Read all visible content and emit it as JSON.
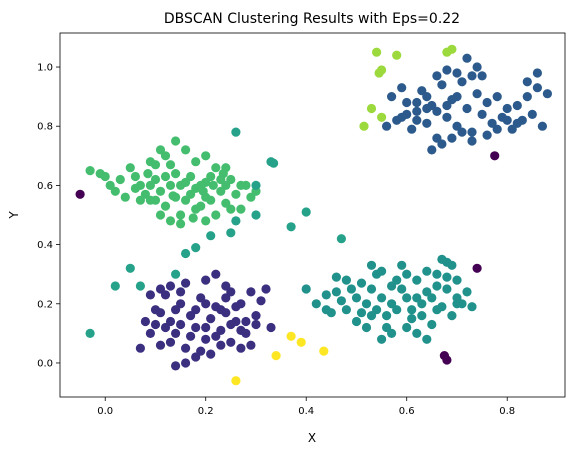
{
  "chart_data": {
    "type": "scatter",
    "title": "DBSCAN Clustering Results with Eps=0.22",
    "xlabel": "X",
    "ylabel": "Y",
    "xlim": [
      -0.09,
      0.915
    ],
    "ylim": [
      -0.115,
      1.115
    ],
    "xticks": [
      "0.0",
      "0.2",
      "0.4",
      "0.6",
      "0.8"
    ],
    "yticks": [
      "0.0",
      "0.2",
      "0.4",
      "0.6",
      "0.8",
      "1.0"
    ],
    "grid": false,
    "colors": {
      "noise": "#440154",
      "cluster_bottom_left": "#3b2f80",
      "cluster_top_right": "#2c5a8c",
      "cluster_bottom_right": "#21918c",
      "sparse_teal": "#27a28a",
      "cluster_top_left": "#44be6e",
      "cluster_lime": "#9bd93c",
      "cluster_yellow": "#fde725"
    },
    "series": [
      {
        "color_key": "noise",
        "points": [
          [
            -0.05,
            0.57
          ],
          [
            0.775,
            0.7
          ],
          [
            0.74,
            0.32
          ],
          [
            0.675,
            0.025
          ],
          [
            0.68,
            0.01
          ]
        ]
      },
      {
        "color_key": "cluster_top_left",
        "points": [
          [
            -0.01,
            0.64
          ],
          [
            0.0,
            0.63
          ],
          [
            0.01,
            0.6
          ],
          [
            0.02,
            0.58
          ],
          [
            0.03,
            0.62
          ],
          [
            0.04,
            0.56
          ],
          [
            0.05,
            0.66
          ],
          [
            0.06,
            0.63
          ],
          [
            0.07,
            0.6
          ],
          [
            0.08,
            0.57
          ],
          [
            0.085,
            0.64
          ],
          [
            0.09,
            0.55
          ],
          [
            0.1,
            0.62
          ],
          [
            0.11,
            0.58
          ],
          [
            0.12,
            0.53
          ],
          [
            0.13,
            0.6
          ],
          [
            0.14,
            0.56
          ],
          [
            0.15,
            0.5
          ],
          [
            0.16,
            0.61
          ],
          [
            0.17,
            0.57
          ],
          [
            0.18,
            0.52
          ],
          [
            0.19,
            0.6
          ],
          [
            0.2,
            0.56
          ],
          [
            0.21,
            0.63
          ],
          [
            0.22,
            0.5
          ],
          [
            0.23,
            0.58
          ],
          [
            0.24,
            0.54
          ],
          [
            0.25,
            0.62
          ],
          [
            0.26,
            0.57
          ],
          [
            0.27,
            0.52
          ],
          [
            0.28,
            0.6
          ],
          [
            0.29,
            0.56
          ],
          [
            0.3,
            0.58
          ],
          [
            0.22,
            0.66
          ],
          [
            0.2,
            0.7
          ],
          [
            0.18,
            0.68
          ],
          [
            0.16,
            0.72
          ],
          [
            0.14,
            0.75
          ],
          [
            0.12,
            0.7
          ],
          [
            0.1,
            0.67
          ],
          [
            0.14,
            0.64
          ],
          [
            0.17,
            0.63
          ],
          [
            0.2,
            0.61
          ],
          [
            0.23,
            0.62
          ],
          [
            0.12,
            0.63
          ],
          [
            0.09,
            0.6
          ],
          [
            0.06,
            0.59
          ],
          [
            0.11,
            0.5
          ],
          [
            0.13,
            0.48
          ],
          [
            0.15,
            0.47
          ],
          [
            0.16,
            0.55
          ],
          [
            0.19,
            0.53
          ],
          [
            0.21,
            0.55
          ],
          [
            0.24,
            0.6
          ],
          [
            0.25,
            0.52
          ],
          [
            0.09,
            0.68
          ],
          [
            0.11,
            0.72
          ],
          [
            0.13,
            0.67
          ],
          [
            0.15,
            0.6
          ],
          [
            0.18,
            0.59
          ],
          [
            0.2,
            0.48
          ],
          [
            0.24,
            0.66
          ],
          [
            0.27,
            0.6
          ],
          [
            -0.03,
            0.65
          ],
          [
            0.07,
            0.55
          ],
          [
            0.1,
            0.55
          ],
          [
            0.135,
            0.565
          ],
          [
            0.175,
            0.49
          ],
          [
            0.195,
            0.58
          ],
          [
            0.215,
            0.6
          ],
          [
            0.235,
            0.64
          ]
        ]
      },
      {
        "color_key": "sparse_teal",
        "points": [
          [
            0.26,
            0.78
          ],
          [
            0.33,
            0.68
          ],
          [
            0.3,
            0.6
          ],
          [
            0.26,
            0.48
          ],
          [
            0.3,
            0.5
          ],
          [
            0.25,
            0.44
          ],
          [
            0.21,
            0.43
          ],
          [
            0.18,
            0.39
          ],
          [
            0.16,
            0.37
          ],
          [
            0.37,
            0.46
          ],
          [
            0.4,
            0.51
          ],
          [
            0.47,
            0.42
          ],
          [
            0.05,
            0.32
          ],
          [
            0.07,
            0.26
          ],
          [
            0.02,
            0.26
          ],
          [
            0.14,
            0.3
          ],
          [
            -0.03,
            0.1
          ],
          [
            0.335,
            0.675
          ]
        ]
      },
      {
        "color_key": "cluster_bottom_left",
        "points": [
          [
            0.08,
            0.14
          ],
          [
            0.09,
            0.1
          ],
          [
            0.1,
            0.18
          ],
          [
            0.11,
            0.06
          ],
          [
            0.12,
            0.23
          ],
          [
            0.13,
            0.14
          ],
          [
            0.14,
            0.1
          ],
          [
            0.15,
            0.2
          ],
          [
            0.16,
            0.05
          ],
          [
            0.17,
            0.16
          ],
          [
            0.18,
            0.12
          ],
          [
            0.19,
            0.22
          ],
          [
            0.2,
            0.08
          ],
          [
            0.21,
            0.15
          ],
          [
            0.22,
            0.19
          ],
          [
            0.23,
            0.11
          ],
          [
            0.24,
            0.17
          ],
          [
            0.25,
            0.07
          ],
          [
            0.26,
            0.14
          ],
          [
            0.27,
            0.2
          ],
          [
            0.28,
            0.1
          ],
          [
            0.29,
            0.24
          ],
          [
            0.3,
            0.16
          ],
          [
            0.31,
            0.21
          ],
          [
            0.32,
            0.25
          ],
          [
            0.33,
            0.12
          ],
          [
            0.2,
            0.28
          ],
          [
            0.22,
            0.3
          ],
          [
            0.24,
            0.26
          ],
          [
            0.16,
            0.27
          ],
          [
            0.15,
            0.24
          ],
          [
            0.13,
            0.26
          ],
          [
            0.11,
            0.25
          ],
          [
            0.14,
            0.18
          ],
          [
            0.17,
            0.09
          ],
          [
            0.19,
            0.04
          ],
          [
            0.21,
            0.03
          ],
          [
            0.23,
            0.06
          ],
          [
            0.25,
            0.13
          ],
          [
            0.27,
            0.11
          ],
          [
            0.29,
            0.06
          ],
          [
            0.12,
            0.12
          ],
          [
            0.1,
            0.13
          ],
          [
            0.07,
            0.05
          ],
          [
            0.14,
            -0.01
          ],
          [
            0.16,
            0.0
          ],
          [
            0.18,
            0.02
          ],
          [
            0.2,
            0.12
          ],
          [
            0.22,
            0.09
          ],
          [
            0.24,
            0.22
          ],
          [
            0.26,
            0.19
          ],
          [
            0.28,
            0.14
          ],
          [
            0.3,
            0.13
          ],
          [
            0.18,
            0.18
          ],
          [
            0.2,
            0.2
          ],
          [
            0.15,
            0.13
          ],
          [
            0.13,
            0.07
          ],
          [
            0.23,
            0.18
          ],
          [
            0.25,
            0.24
          ],
          [
            0.27,
            0.05
          ],
          [
            0.09,
            0.23
          ],
          [
            0.11,
            0.17
          ]
        ]
      },
      {
        "color_key": "cluster_yellow",
        "points": [
          [
            0.26,
            -0.06
          ],
          [
            0.34,
            0.025
          ],
          [
            0.37,
            0.09
          ],
          [
            0.39,
            0.07
          ],
          [
            0.435,
            0.04
          ]
        ]
      },
      {
        "color_key": "cluster_bottom_right",
        "points": [
          [
            0.4,
            0.25
          ],
          [
            0.42,
            0.2
          ],
          [
            0.44,
            0.23
          ],
          [
            0.45,
            0.17
          ],
          [
            0.46,
            0.29
          ],
          [
            0.47,
            0.21
          ],
          [
            0.48,
            0.18
          ],
          [
            0.49,
            0.25
          ],
          [
            0.5,
            0.14
          ],
          [
            0.51,
            0.27
          ],
          [
            0.52,
            0.2
          ],
          [
            0.53,
            0.16
          ],
          [
            0.54,
            0.3
          ],
          [
            0.55,
            0.22
          ],
          [
            0.56,
            0.12
          ],
          [
            0.57,
            0.26
          ],
          [
            0.58,
            0.18
          ],
          [
            0.59,
            0.33
          ],
          [
            0.6,
            0.22
          ],
          [
            0.61,
            0.15
          ],
          [
            0.62,
            0.28
          ],
          [
            0.63,
            0.2
          ],
          [
            0.64,
            0.24
          ],
          [
            0.65,
            0.13
          ],
          [
            0.66,
            0.3
          ],
          [
            0.67,
            0.19
          ],
          [
            0.68,
            0.25
          ],
          [
            0.69,
            0.16
          ],
          [
            0.7,
            0.28
          ],
          [
            0.71,
            0.2
          ],
          [
            0.72,
            0.24
          ],
          [
            0.55,
            0.08
          ],
          [
            0.57,
            0.1
          ],
          [
            0.62,
            0.1
          ],
          [
            0.64,
            0.08
          ],
          [
            0.67,
            0.35
          ],
          [
            0.68,
            0.34
          ],
          [
            0.69,
            0.33
          ],
          [
            0.53,
            0.33
          ],
          [
            0.55,
            0.31
          ],
          [
            0.57,
            0.2
          ],
          [
            0.59,
            0.25
          ],
          [
            0.61,
            0.18
          ],
          [
            0.63,
            0.16
          ],
          [
            0.65,
            0.22
          ],
          [
            0.5,
            0.22
          ],
          [
            0.52,
            0.12
          ],
          [
            0.48,
            0.28
          ],
          [
            0.58,
            0.28
          ],
          [
            0.6,
            0.3
          ],
          [
            0.66,
            0.18
          ],
          [
            0.7,
            0.22
          ],
          [
            0.73,
            0.19
          ],
          [
            0.44,
            0.18
          ],
          [
            0.46,
            0.24
          ],
          [
            0.54,
            0.18
          ],
          [
            0.56,
            0.16
          ],
          [
            0.6,
            0.12
          ],
          [
            0.62,
            0.22
          ],
          [
            0.64,
            0.31
          ],
          [
            0.66,
            0.26
          ],
          [
            0.68,
            0.29
          ],
          [
            0.7,
            0.2
          ],
          [
            0.51,
            0.17
          ],
          [
            0.53,
            0.25
          ]
        ]
      },
      {
        "color_key": "cluster_top_right",
        "points": [
          [
            0.59,
            0.83
          ],
          [
            0.6,
            0.88
          ],
          [
            0.61,
            0.79
          ],
          [
            0.62,
            0.85
          ],
          [
            0.63,
            0.92
          ],
          [
            0.64,
            0.81
          ],
          [
            0.65,
            0.87
          ],
          [
            0.66,
            0.76
          ],
          [
            0.67,
            0.94
          ],
          [
            0.68,
            0.83
          ],
          [
            0.69,
            0.89
          ],
          [
            0.7,
            0.8
          ],
          [
            0.71,
            0.95
          ],
          [
            0.72,
            0.86
          ],
          [
            0.73,
            0.78
          ],
          [
            0.74,
            0.91
          ],
          [
            0.75,
            0.84
          ],
          [
            0.76,
            0.88
          ],
          [
            0.77,
            0.81
          ],
          [
            0.78,
            0.9
          ],
          [
            0.79,
            0.83
          ],
          [
            0.8,
            0.86
          ],
          [
            0.81,
            0.79
          ],
          [
            0.82,
            0.87
          ],
          [
            0.83,
            0.82
          ],
          [
            0.84,
            0.9
          ],
          [
            0.85,
            0.84
          ],
          [
            0.86,
            0.93
          ],
          [
            0.87,
            0.8
          ],
          [
            0.88,
            0.91
          ],
          [
            0.72,
            1.03
          ],
          [
            0.74,
            1.0
          ],
          [
            0.75,
            0.97
          ],
          [
            0.73,
            0.97
          ],
          [
            0.7,
            0.98
          ],
          [
            0.68,
            0.99
          ],
          [
            0.66,
            0.97
          ],
          [
            0.64,
            0.9
          ],
          [
            0.62,
            0.88
          ],
          [
            0.6,
            0.84
          ],
          [
            0.58,
            0.82
          ],
          [
            0.56,
            0.8
          ],
          [
            0.65,
            0.72
          ],
          [
            0.67,
            0.74
          ],
          [
            0.69,
            0.76
          ],
          [
            0.71,
            0.78
          ],
          [
            0.73,
            0.75
          ],
          [
            0.76,
            0.77
          ],
          [
            0.78,
            0.79
          ],
          [
            0.8,
            0.82
          ],
          [
            0.82,
            0.81
          ],
          [
            0.84,
            0.95
          ],
          [
            0.86,
            0.98
          ],
          [
            0.7,
            0.9
          ],
          [
            0.68,
            0.87
          ],
          [
            0.66,
            0.85
          ],
          [
            0.64,
            0.86
          ],
          [
            0.62,
            0.82
          ],
          [
            0.59,
            0.93
          ],
          [
            0.57,
            0.9
          ]
        ]
      },
      {
        "color_key": "cluster_lime",
        "points": [
          [
            0.54,
            1.05
          ],
          [
            0.58,
            1.04
          ],
          [
            0.55,
            0.99
          ],
          [
            0.545,
            0.98
          ],
          [
            0.68,
            1.05
          ],
          [
            0.69,
            1.06
          ],
          [
            0.53,
            0.86
          ],
          [
            0.55,
            0.83
          ],
          [
            0.515,
            0.8
          ]
        ]
      }
    ]
  }
}
